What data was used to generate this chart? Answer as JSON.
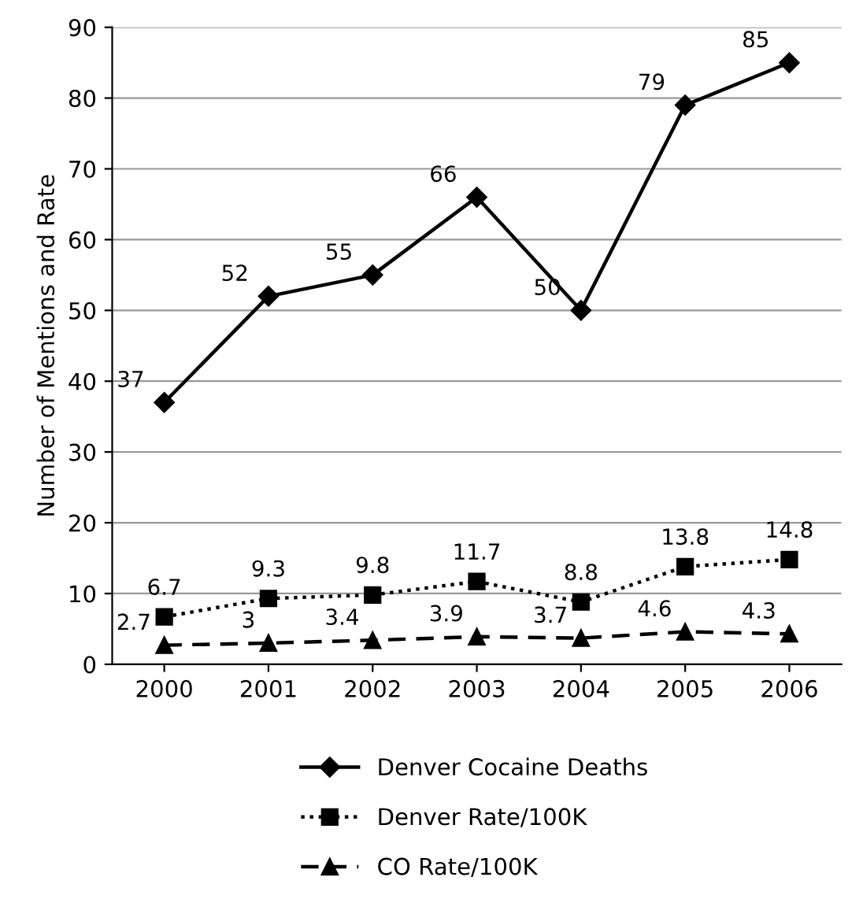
{
  "chart_data": {
    "type": "line",
    "ylabel": "Number of Mentions and Rate",
    "categories": [
      "2000",
      "2001",
      "2002",
      "2003",
      "2004",
      "2005",
      "2006"
    ],
    "series": [
      {
        "name": "Denver Cocaine Deaths",
        "color": "#000000",
        "marker": "diamond",
        "line_style": "solid",
        "values": [
          37,
          52,
          55,
          66,
          50,
          79,
          85
        ]
      },
      {
        "name": "Denver Rate/100K",
        "color": "#000000",
        "marker": "square",
        "line_style": "dotted",
        "values": [
          6.7,
          9.3,
          9.8,
          11.7,
          8.8,
          13.8,
          14.8
        ]
      },
      {
        "name": "CO Rate/100K",
        "color": "#000000",
        "marker": "triangle",
        "line_style": "dashed",
        "values": [
          2.7,
          3,
          3.4,
          3.9,
          3.7,
          4.6,
          4.3
        ]
      }
    ],
    "ylim": [
      0,
      90
    ],
    "yticks": [
      0,
      10,
      20,
      30,
      40,
      50,
      60,
      70,
      80,
      90
    ],
    "grid": "y",
    "legend": "bottom",
    "data_labels": true
  }
}
